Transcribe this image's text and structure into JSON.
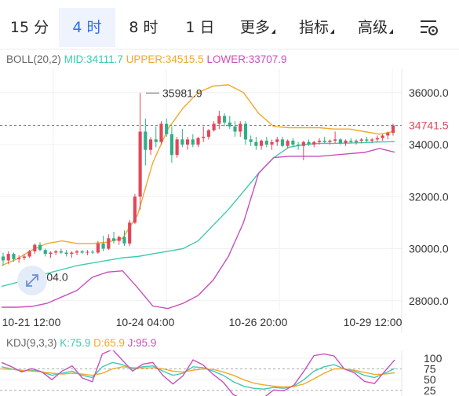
{
  "tabs": [
    {
      "label": "15 分",
      "active": false
    },
    {
      "label": "4 时",
      "active": true
    },
    {
      "label": "8 时",
      "active": false
    },
    {
      "label": "1 日",
      "active": false
    },
    {
      "label": "更多",
      "active": false,
      "dropdown": true
    },
    {
      "label": "指标",
      "active": false,
      "dropdown": true
    },
    {
      "label": "高级",
      "active": false,
      "dropdown": true
    }
  ],
  "settings_icon": "chart-settings-icon",
  "expand_icon": "expand-arrows-icon",
  "boll": {
    "name": "BOLL(20,2)",
    "mid": "MID:34111.7",
    "upper": "UPPER:34515.5",
    "lower": "LOWER:33707.9",
    "colors": {
      "mid": "#3ec9b0",
      "upper": "#f0a92a",
      "lower": "#c94fbe"
    }
  },
  "kdj": {
    "name": "KDJ(9,3,3)",
    "k": "K:75.9",
    "d": "D:65.9",
    "j": "J:95.9",
    "colors": {
      "k": "#3ec9b0",
      "d": "#f0a92a",
      "j": "#c94fbe"
    }
  },
  "colors": {
    "up": "#2eaf86",
    "down": "#e0475a",
    "active_tab": "#2f6cf5"
  },
  "price_labels": {
    "high": "35981.9",
    "low": "29304.0",
    "current": "34741.5"
  },
  "chart_data": [
    {
      "type": "candlestick",
      "title": "",
      "x_ticks": [
        "10-21 12:00",
        "10-24 04:00",
        "10-26 20:00",
        "10-29 12:00"
      ],
      "y_ticks": [
        "36000.0",
        "34000.0",
        "32000.0",
        "30000.0",
        "28000.0"
      ],
      "ylim": [
        27600,
        36900
      ],
      "current_price": 34741.5,
      "annotated_high": 35981.9,
      "annotated_low": 29304.0,
      "candles_ohlc": [
        [
          29700,
          29850,
          29350,
          29550
        ],
        [
          29550,
          29900,
          29400,
          29800
        ],
        [
          29800,
          29850,
          29500,
          29600
        ],
        [
          29600,
          29750,
          29450,
          29650
        ],
        [
          29650,
          29800,
          29550,
          29700
        ],
        [
          29700,
          29950,
          29650,
          29900
        ],
        [
          29900,
          30200,
          29800,
          30150
        ],
        [
          30150,
          30250,
          29900,
          29950
        ],
        [
          29950,
          30000,
          29700,
          29800
        ],
        [
          29800,
          29900,
          29650,
          29850
        ],
        [
          29850,
          29950,
          29750,
          29900
        ],
        [
          29900,
          30000,
          29800,
          29850
        ],
        [
          29850,
          29950,
          29700,
          29800
        ],
        [
          29800,
          29900,
          29650,
          29850
        ],
        [
          29850,
          29950,
          29750,
          29900
        ],
        [
          29900,
          29950,
          29800,
          29850
        ],
        [
          29850,
          29950,
          29750,
          29880
        ],
        [
          29880,
          29950,
          29800,
          29850
        ],
        [
          29850,
          30300,
          29800,
          30200
        ],
        [
          30200,
          30500,
          29900,
          30000
        ],
        [
          30000,
          30550,
          29950,
          30400
        ],
        [
          30400,
          30650,
          30200,
          30300
        ],
        [
          30300,
          30500,
          30150,
          30450
        ],
        [
          30450,
          30700,
          30100,
          30200
        ],
        [
          30200,
          31100,
          30100,
          31000
        ],
        [
          31000,
          32100,
          30950,
          32000
        ],
        [
          32000,
          35981.9,
          31500,
          34500
        ],
        [
          34500,
          35000,
          33200,
          33800
        ],
        [
          33800,
          34300,
          33600,
          34200
        ],
        [
          34200,
          34700,
          33900,
          34100
        ],
        [
          34100,
          34900,
          34000,
          34800
        ],
        [
          34800,
          35000,
          34300,
          34400
        ],
        [
          34400,
          34700,
          33300,
          33600
        ],
        [
          33600,
          34300,
          33500,
          34200
        ],
        [
          34200,
          34600,
          33900,
          34000
        ],
        [
          34000,
          34300,
          33800,
          34200
        ],
        [
          34200,
          34400,
          33900,
          34000
        ],
        [
          34000,
          34300,
          33900,
          34250
        ],
        [
          34250,
          34700,
          34100,
          34300
        ],
        [
          34300,
          34600,
          34200,
          34550
        ],
        [
          34550,
          34900,
          34500,
          34800
        ],
        [
          34800,
          35300,
          34600,
          35100
        ],
        [
          35100,
          35200,
          34700,
          34850
        ],
        [
          34850,
          35100,
          34600,
          34700
        ],
        [
          34700,
          34900,
          34300,
          34500
        ],
        [
          34500,
          34900,
          34300,
          34800
        ],
        [
          34800,
          34900,
          34000,
          34200
        ],
        [
          34200,
          34350,
          33950,
          34100
        ],
        [
          34100,
          34300,
          33800,
          33950
        ],
        [
          33950,
          34200,
          33800,
          34150
        ],
        [
          34150,
          34300,
          33900,
          34000
        ],
        [
          34000,
          34200,
          33800,
          34100
        ],
        [
          34100,
          34300,
          33950,
          34200
        ],
        [
          34200,
          34300,
          33900,
          33950
        ],
        [
          33950,
          34200,
          33850,
          34150
        ],
        [
          34150,
          34250,
          33900,
          34000
        ],
        [
          34000,
          34100,
          33800,
          33950
        ],
        [
          33950,
          34150,
          33400,
          34100
        ],
        [
          34100,
          34200,
          33950,
          34000
        ],
        [
          34000,
          34150,
          33900,
          34100
        ],
        [
          34100,
          34250,
          34000,
          34150
        ],
        [
          34150,
          34300,
          34050,
          34100
        ],
        [
          34100,
          34200,
          34000,
          34150
        ],
        [
          34150,
          34500,
          34050,
          34200
        ],
        [
          34200,
          34250,
          34000,
          34050
        ],
        [
          34050,
          34200,
          33950,
          34150
        ],
        [
          34150,
          34250,
          34050,
          34100
        ],
        [
          34100,
          34200,
          34000,
          34150
        ],
        [
          34150,
          34250,
          34050,
          34200
        ],
        [
          34200,
          34300,
          34100,
          34150
        ],
        [
          34150,
          34250,
          34050,
          34200
        ],
        [
          34200,
          34350,
          34100,
          34250
        ],
        [
          34250,
          34400,
          34150,
          34350
        ],
        [
          34350,
          34500,
          34200,
          34450
        ],
        [
          34450,
          34800,
          34350,
          34741.5
        ]
      ],
      "series": [
        {
          "name": "MID",
          "values": [
            28550,
            28700,
            28900,
            29050,
            29200,
            29350,
            29450,
            29550,
            29650,
            29700,
            29800,
            29900,
            30000,
            30300,
            30900,
            31500,
            32200,
            32900,
            33500,
            33900,
            34000,
            34050,
            34050,
            34060,
            34080,
            34100,
            34111.7
          ]
        },
        {
          "name": "UPPER",
          "values": [
            29350,
            29600,
            29950,
            30200,
            30300,
            30200,
            30200,
            30250,
            30400,
            31300,
            33300,
            34600,
            35400,
            36000,
            36250,
            36300,
            36000,
            35200,
            34700,
            34650,
            34650,
            34650,
            34600,
            34600,
            34500,
            34400,
            34515.5
          ]
        },
        {
          "name": "LOWER",
          "values": [
            27750,
            27750,
            27780,
            27900,
            28150,
            28400,
            28900,
            29100,
            29150,
            28500,
            27800,
            27700,
            27900,
            28200,
            28800,
            29700,
            31000,
            32900,
            33500,
            33550,
            33550,
            33550,
            33600,
            33650,
            33700,
            33850,
            33707.9
          ]
        }
      ]
    },
    {
      "type": "line",
      "title": "",
      "y_ticks": [
        "100",
        "75",
        "50",
        "25"
      ],
      "ylim": [
        12,
        118
      ],
      "series": [
        {
          "name": "K",
          "values": [
            80,
            75,
            70,
            72,
            68,
            60,
            65,
            70,
            60,
            55,
            80,
            90,
            85,
            75,
            80,
            82,
            70,
            60,
            65,
            80,
            78,
            70,
            60,
            45,
            35,
            30,
            28,
            32,
            30,
            35,
            50,
            70,
            80,
            85,
            75,
            70,
            60,
            55,
            65,
            75.9
          ]
        },
        {
          "name": "D",
          "values": [
            75,
            74,
            72,
            70,
            68,
            65,
            63,
            65,
            63,
            60,
            65,
            75,
            80,
            78,
            77,
            78,
            75,
            70,
            68,
            72,
            75,
            74,
            68,
            60,
            50,
            42,
            38,
            35,
            33,
            34,
            40,
            52,
            65,
            75,
            75,
            72,
            67,
            62,
            63,
            65.9
          ]
        },
        {
          "name": "J",
          "values": [
            90,
            80,
            68,
            76,
            68,
            50,
            70,
            82,
            54,
            45,
            110,
            120,
            95,
            70,
            86,
            90,
            60,
            40,
            59,
            96,
            84,
            62,
            44,
            15,
            5,
            6,
            8,
            26,
            24,
            37,
            70,
            106,
            110,
            105,
            75,
            66,
            46,
            41,
            69,
            95.9
          ]
        }
      ]
    }
  ]
}
